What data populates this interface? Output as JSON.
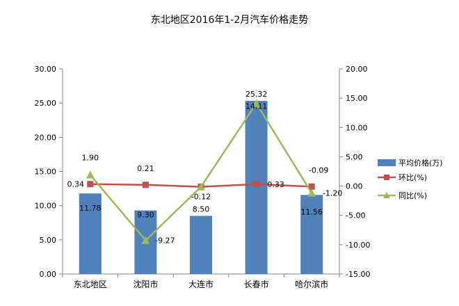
{
  "chart_data": {
    "type": "bar",
    "title": "东北地区2016年1-2月汽车价格走势",
    "categories": [
      "东北地区",
      "沈阳市",
      "大连市",
      "长春市",
      "哈尔滨市"
    ],
    "series": [
      {
        "name": "平均价格(万)",
        "type": "bar",
        "axis": "left",
        "color": "#4f81bd",
        "values": [
          11.78,
          9.3,
          8.5,
          25.32,
          11.56
        ],
        "labels": [
          "11.78",
          "9.30",
          "8.50",
          "25.32",
          "11.56"
        ]
      },
      {
        "name": "环比(%)",
        "type": "line",
        "axis": "right",
        "color": "#c0504d",
        "marker": "square",
        "values": [
          0.34,
          0.21,
          -0.12,
          0.33,
          -0.09
        ],
        "labels": [
          "0.34",
          "0.21",
          "-0.12",
          "0.33",
          "-0.09"
        ]
      },
      {
        "name": "同比(%)",
        "type": "line",
        "axis": "right",
        "color": "#9bbb59",
        "marker": "triangle",
        "values": [
          1.9,
          -9.27,
          -0.12,
          14.11,
          -1.2
        ],
        "labels": [
          "1.90",
          "-9.27",
          "",
          "14.11",
          "-1.20"
        ]
      }
    ],
    "y_left": {
      "range": [
        0,
        30
      ],
      "ticks": [
        "0.00",
        "5.00",
        "10.00",
        "15.00",
        "20.00",
        "25.00",
        "30.00"
      ]
    },
    "y_right": {
      "range": [
        -15,
        20
      ],
      "ticks": [
        "-15.00",
        "-10.00",
        "-5.00",
        "0.00",
        "5.00",
        "10.00",
        "15.00",
        "20.00"
      ]
    },
    "legend_position": "right",
    "grid": false
  }
}
